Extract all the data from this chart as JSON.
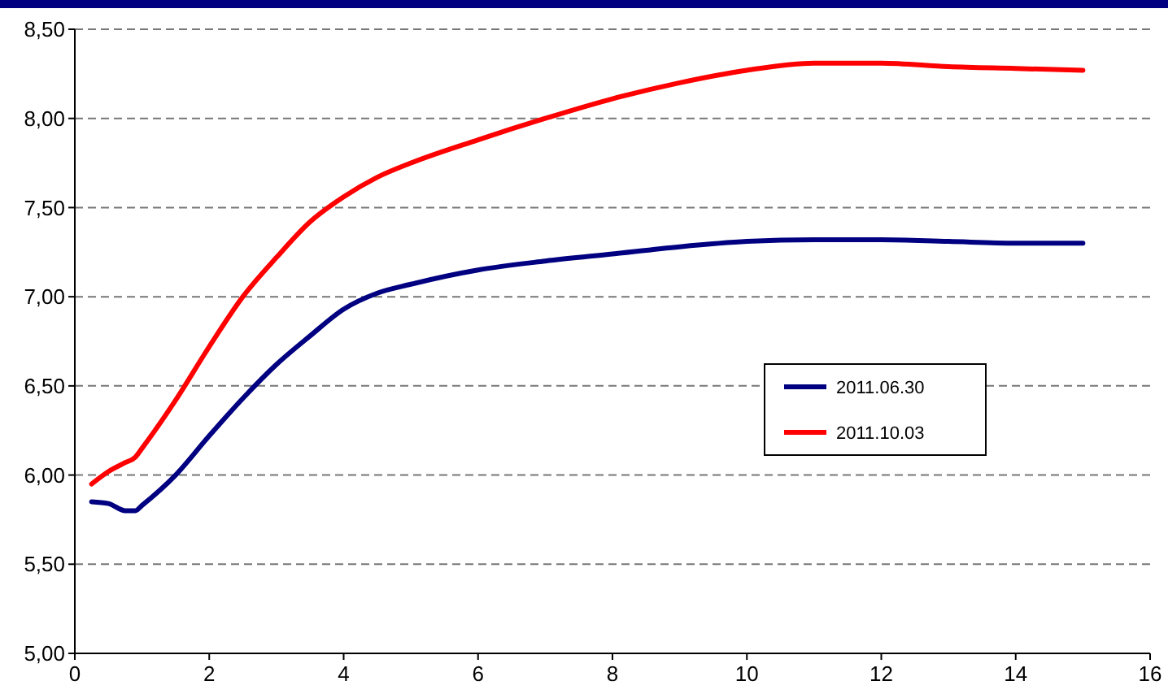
{
  "chart_data": {
    "type": "line",
    "xlim": [
      0,
      16
    ],
    "xticks": [
      0,
      2,
      4,
      6,
      8,
      10,
      12,
      14,
      16
    ],
    "ylim": [
      5,
      8.5
    ],
    "yticks": [
      {
        "value": 5,
        "label": "5,00"
      },
      {
        "value": 5.5,
        "label": "5,50"
      },
      {
        "value": 6,
        "label": "6,00"
      },
      {
        "value": 6.5,
        "label": "6,50"
      },
      {
        "value": 7,
        "label": "7,00"
      },
      {
        "value": 7.5,
        "label": "7,50"
      },
      {
        "value": 8,
        "label": "8,00"
      },
      {
        "value": 8.5,
        "label": "8,50"
      }
    ],
    "grid": "y",
    "legend": "right",
    "marker": "none",
    "line_style": "solid",
    "x": [
      0.25,
      0.5,
      0.75,
      0.9,
      1,
      1.5,
      2,
      2.5,
      3,
      3.5,
      4,
      4.5,
      5,
      6,
      7,
      8,
      9,
      10,
      11,
      12,
      13,
      14,
      15
    ],
    "series": [
      {
        "name": "2011.06.30",
        "color": "#000080",
        "values": [
          5.85,
          5.84,
          5.8,
          5.8,
          5.83,
          6.0,
          6.22,
          6.43,
          6.62,
          6.78,
          6.93,
          7.02,
          7.07,
          7.15,
          7.2,
          7.24,
          7.28,
          7.31,
          7.32,
          7.32,
          7.31,
          7.3,
          7.3
        ]
      },
      {
        "name": "2011.10.03",
        "color": "#ff0000",
        "values": [
          5.95,
          6.02,
          6.07,
          6.1,
          6.15,
          6.42,
          6.72,
          7.0,
          7.22,
          7.42,
          7.56,
          7.67,
          7.75,
          7.88,
          8.0,
          8.11,
          8.2,
          8.27,
          8.31,
          8.31,
          8.29,
          8.28,
          8.27
        ]
      }
    ]
  }
}
